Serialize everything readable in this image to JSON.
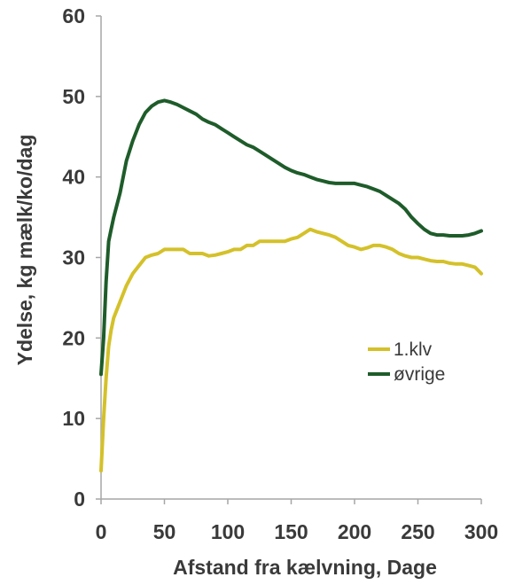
{
  "chart_data": {
    "type": "line",
    "title": "",
    "xlabel": "Afstand fra kælvning, Dage",
    "ylabel": "Ydelse, kg mælk/ko/dag",
    "xlim": [
      0,
      300
    ],
    "ylim": [
      0,
      60
    ],
    "x_ticks": [
      0,
      50,
      100,
      150,
      200,
      250,
      300
    ],
    "y_ticks": [
      0,
      10,
      20,
      30,
      40,
      50,
      60
    ],
    "grid": false,
    "legend_position": "lower-right",
    "series": [
      {
        "name": "1.klv",
        "color": "#d4c12a",
        "points": [
          [
            0,
            3.5
          ],
          [
            2,
            10
          ],
          [
            4,
            15
          ],
          [
            6,
            19
          ],
          [
            8,
            21
          ],
          [
            10,
            22.5
          ],
          [
            15,
            24.5
          ],
          [
            20,
            26.5
          ],
          [
            25,
            28
          ],
          [
            30,
            29
          ],
          [
            35,
            30
          ],
          [
            40,
            30.3
          ],
          [
            45,
            30.5
          ],
          [
            50,
            31
          ],
          [
            55,
            31
          ],
          [
            60,
            31
          ],
          [
            65,
            31
          ],
          [
            70,
            30.5
          ],
          [
            75,
            30.5
          ],
          [
            80,
            30.5
          ],
          [
            85,
            30.2
          ],
          [
            90,
            30.3
          ],
          [
            95,
            30.5
          ],
          [
            100,
            30.7
          ],
          [
            105,
            31
          ],
          [
            110,
            31
          ],
          [
            115,
            31.5
          ],
          [
            120,
            31.5
          ],
          [
            125,
            32
          ],
          [
            130,
            32
          ],
          [
            135,
            32
          ],
          [
            140,
            32
          ],
          [
            145,
            32
          ],
          [
            150,
            32.3
          ],
          [
            155,
            32.5
          ],
          [
            160,
            33
          ],
          [
            165,
            33.5
          ],
          [
            170,
            33.2
          ],
          [
            175,
            33
          ],
          [
            180,
            32.8
          ],
          [
            185,
            32.5
          ],
          [
            190,
            32
          ],
          [
            195,
            31.5
          ],
          [
            200,
            31.3
          ],
          [
            205,
            31
          ],
          [
            210,
            31.2
          ],
          [
            215,
            31.5
          ],
          [
            220,
            31.5
          ],
          [
            225,
            31.3
          ],
          [
            230,
            31
          ],
          [
            235,
            30.5
          ],
          [
            240,
            30.2
          ],
          [
            245,
            30
          ],
          [
            250,
            30
          ],
          [
            255,
            29.8
          ],
          [
            260,
            29.6
          ],
          [
            265,
            29.5
          ],
          [
            270,
            29.5
          ],
          [
            275,
            29.3
          ],
          [
            280,
            29.2
          ],
          [
            285,
            29.2
          ],
          [
            290,
            29
          ],
          [
            295,
            28.8
          ],
          [
            300,
            28
          ]
        ]
      },
      {
        "name": "øvrige",
        "color": "#1e5c2a",
        "points": [
          [
            0,
            15.5
          ],
          [
            2,
            20
          ],
          [
            4,
            27
          ],
          [
            6,
            32
          ],
          [
            8,
            33.5
          ],
          [
            10,
            35
          ],
          [
            15,
            38
          ],
          [
            20,
            42
          ],
          [
            25,
            44.5
          ],
          [
            30,
            46.5
          ],
          [
            35,
            48
          ],
          [
            40,
            48.8
          ],
          [
            45,
            49.3
          ],
          [
            50,
            49.5
          ],
          [
            55,
            49.3
          ],
          [
            60,
            49
          ],
          [
            65,
            48.6
          ],
          [
            70,
            48.2
          ],
          [
            75,
            47.8
          ],
          [
            80,
            47.2
          ],
          [
            85,
            46.8
          ],
          [
            90,
            46.5
          ],
          [
            95,
            46
          ],
          [
            100,
            45.5
          ],
          [
            105,
            45
          ],
          [
            110,
            44.5
          ],
          [
            115,
            44
          ],
          [
            120,
            43.7
          ],
          [
            125,
            43.2
          ],
          [
            130,
            42.7
          ],
          [
            135,
            42.2
          ],
          [
            140,
            41.7
          ],
          [
            145,
            41.2
          ],
          [
            150,
            40.8
          ],
          [
            155,
            40.5
          ],
          [
            160,
            40.3
          ],
          [
            165,
            40
          ],
          [
            170,
            39.7
          ],
          [
            175,
            39.5
          ],
          [
            180,
            39.3
          ],
          [
            185,
            39.2
          ],
          [
            190,
            39.2
          ],
          [
            195,
            39.2
          ],
          [
            200,
            39.2
          ],
          [
            205,
            39
          ],
          [
            210,
            38.8
          ],
          [
            215,
            38.5
          ],
          [
            220,
            38.2
          ],
          [
            225,
            37.7
          ],
          [
            230,
            37.2
          ],
          [
            235,
            36.7
          ],
          [
            240,
            36
          ],
          [
            245,
            35
          ],
          [
            250,
            34.2
          ],
          [
            255,
            33.5
          ],
          [
            260,
            33
          ],
          [
            265,
            32.8
          ],
          [
            270,
            32.8
          ],
          [
            275,
            32.7
          ],
          [
            280,
            32.7
          ],
          [
            285,
            32.7
          ],
          [
            290,
            32.8
          ],
          [
            295,
            33
          ],
          [
            300,
            33.3
          ]
        ]
      }
    ]
  }
}
